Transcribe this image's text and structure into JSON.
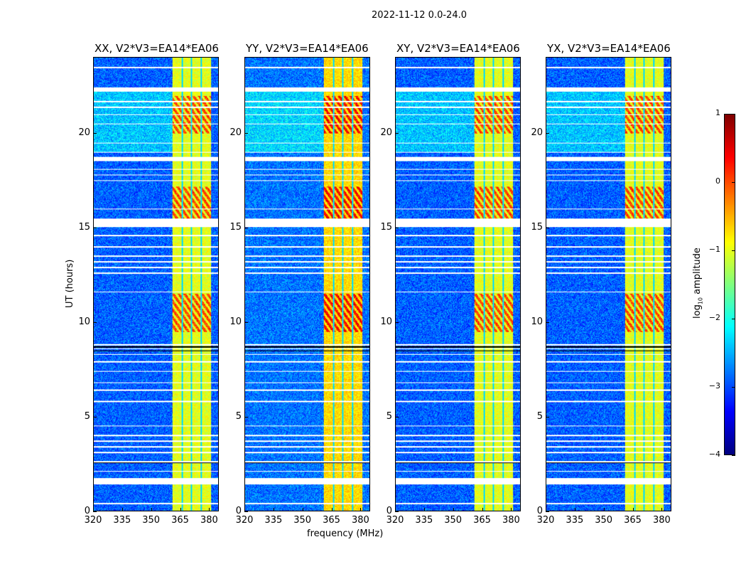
{
  "suptitle": "2022-11-12 0.0-24.0",
  "chart_data": {
    "type": "heatmap",
    "xlabel": "frequency (MHz)",
    "ylabel": "UT (hours)",
    "xlim": [
      320,
      385
    ],
    "ylim": [
      0,
      24
    ],
    "xticks": [
      "320",
      "335",
      "350",
      "365",
      "380"
    ],
    "xtick_values": [
      320,
      335,
      350,
      365,
      380
    ],
    "yticks": [
      "0",
      "5",
      "10",
      "15",
      "20"
    ],
    "ytick_values": [
      0,
      5,
      10,
      15,
      20
    ],
    "panels": [
      {
        "title": "XX, V2*V3=EA14*EA06",
        "background_level": -2.9,
        "band_level": -1.0
      },
      {
        "title": "YY, V2*V3=EA14*EA06",
        "background_level": -2.8,
        "band_level": -0.7
      },
      {
        "title": "XY, V2*V3=EA14*EA06",
        "background_level": -2.9,
        "band_level": -1.0
      },
      {
        "title": "YX, V2*V3=EA14*EA06",
        "background_level": -2.9,
        "band_level": -1.0
      }
    ],
    "rfi_band_mhz": [
      361,
      381
    ],
    "rfi_band_gaps_mhz": [
      366,
      371,
      376
    ],
    "strong_rfi_hours": [
      [
        15.5,
        17.2
      ],
      [
        20.0,
        22.0
      ],
      [
        9.5,
        11.5
      ]
    ],
    "flagged_hours": [
      [
        1.4,
        1.75
      ],
      [
        15.05,
        15.5
      ],
      [
        18.55,
        18.75
      ],
      [
        22.2,
        22.45
      ],
      [
        12.55,
        12.65
      ]
    ],
    "flag_lines_hours": [
      0.4,
      2.1,
      2.6,
      3.1,
      3.4,
      3.7,
      4.0,
      4.5,
      5.8,
      6.4,
      6.8,
      7.4,
      7.9,
      8.3,
      8.6,
      8.8,
      11.6,
      12.9,
      13.2,
      13.5,
      14.0,
      14.6,
      16.0,
      17.5,
      17.8,
      18.1,
      19.0,
      19.5,
      20.5,
      21.0,
      21.4,
      21.7,
      23.5
    ],
    "colorbar": {
      "label": "log10 amplitude",
      "label_main": "log",
      "label_sub": "10",
      "label_rest": " amplitude",
      "range": [
        -4,
        1
      ],
      "ticks": [
        "1",
        "0",
        "−1",
        "−2",
        "−3",
        "−4"
      ],
      "tick_values": [
        1,
        0,
        -1,
        -2,
        -3,
        -4
      ],
      "colormap": "jet"
    }
  }
}
